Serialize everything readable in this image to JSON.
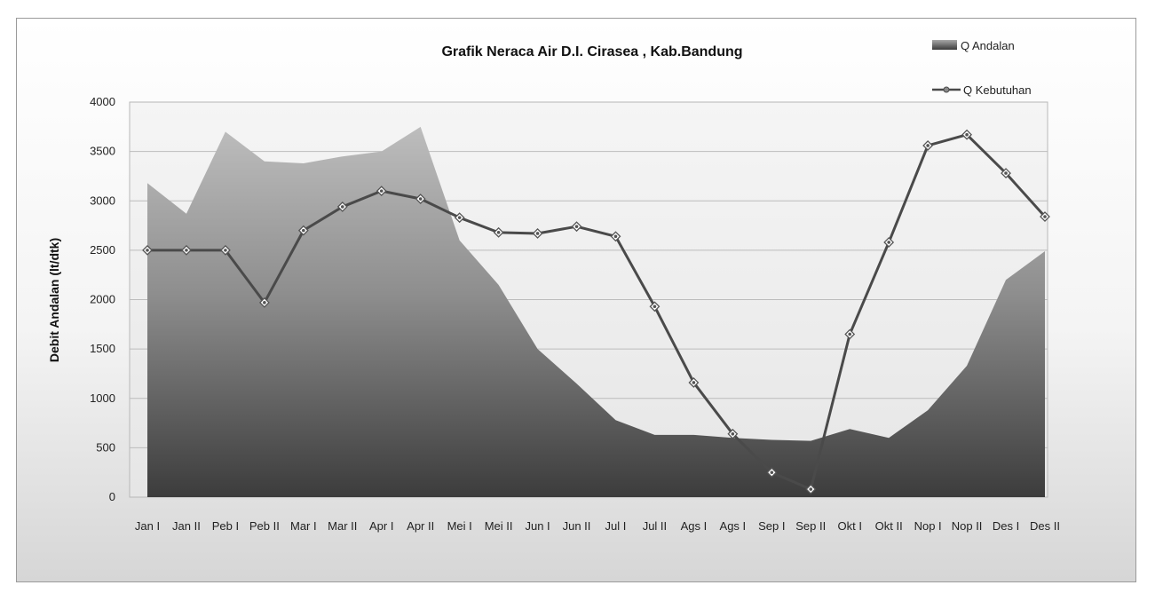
{
  "chart_data": {
    "type": "area",
    "title": "Grafik Neraca Air D.I. Cirasea , Kab.Bandung",
    "xlabel": "",
    "ylabel": "Debit Andalan (lt/dtk)",
    "ylim": [
      0,
      4000
    ],
    "yticks": [
      0,
      500,
      1000,
      1500,
      2000,
      2500,
      3000,
      3500,
      4000
    ],
    "grid": true,
    "legend_position": "top-right",
    "categories": [
      "Jan I",
      "Jan II",
      "Peb I",
      "Peb II",
      "Mar I",
      "Mar II",
      "Apr I",
      "Apr II",
      "Mei I",
      "Mei II",
      "Jun I",
      "Jun II",
      "Jul I",
      "Jul II",
      "Ags I",
      "Ags I",
      "Sep I",
      "Sep II",
      "Okt I",
      "Okt II",
      "Nop I",
      "Nop II",
      "Des I",
      "Des II"
    ],
    "series": [
      {
        "name": "Q Andalan",
        "type": "area",
        "values": [
          3180,
          2870,
          3700,
          3400,
          3380,
          3450,
          3500,
          3750,
          2600,
          2150,
          1500,
          1150,
          780,
          630,
          630,
          600,
          580,
          570,
          690,
          600,
          880,
          1330,
          2200,
          2490
        ]
      },
      {
        "name": "Q Kebutuhan",
        "type": "line",
        "values": [
          2500,
          2500,
          2500,
          1970,
          2700,
          2940,
          3100,
          3020,
          2830,
          2680,
          2670,
          2740,
          2640,
          1930,
          1160,
          640,
          250,
          80,
          1650,
          2580,
          3560,
          3670,
          3280,
          2840
        ]
      }
    ]
  }
}
